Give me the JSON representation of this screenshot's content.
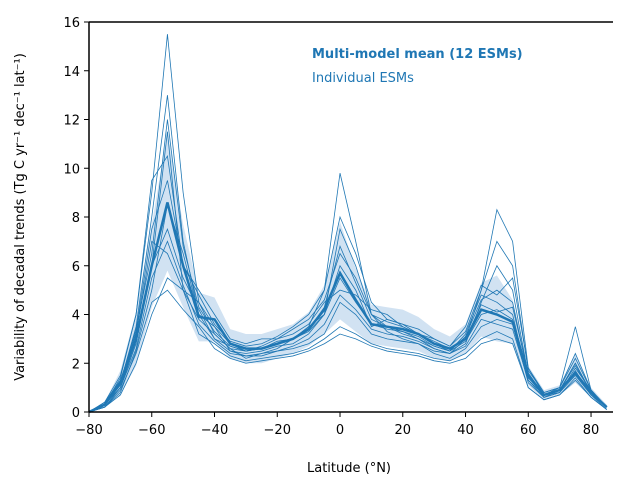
{
  "chart_data": {
    "type": "line",
    "xlabel": "Latitude (°N)",
    "ylabel": "Variability of decadal trends (Tg C yr⁻¹ dec⁻¹ lat⁻¹)",
    "xlim": [
      -80,
      87
    ],
    "ylim": [
      0,
      16
    ],
    "xticks": [
      {
        "value": -80,
        "label": "−80"
      },
      {
        "value": -60,
        "label": "−60"
      },
      {
        "value": -40,
        "label": "−40"
      },
      {
        "value": -20,
        "label": "−20"
      },
      0,
      20,
      40,
      60,
      80
    ],
    "yticks": [
      0,
      2,
      4,
      6,
      8,
      10,
      12,
      14,
      16
    ],
    "x": [
      -80,
      -75,
      -70,
      -65,
      -60,
      -55,
      -50,
      -45,
      -40,
      -35,
      -30,
      -25,
      -20,
      -15,
      -10,
      -5,
      0,
      5,
      10,
      15,
      20,
      25,
      30,
      35,
      40,
      45,
      50,
      55,
      60,
      65,
      70,
      75,
      80,
      85
    ],
    "series": [
      {
        "name": "Multi-model mean (12 ESMs)",
        "color": "#1f77b4",
        "band_color": "#c6dbef",
        "values": [
          0,
          0.3,
          1.2,
          3,
          6,
          8.6,
          6,
          3.9,
          3.8,
          2.8,
          2.6,
          2.6,
          2.8,
          3,
          3.4,
          4.2,
          5.7,
          4.6,
          3.6,
          3.5,
          3.4,
          3.2,
          2.8,
          2.6,
          3,
          4.2,
          4,
          3.7,
          1.5,
          0.7,
          0.9,
          1.6,
          0.8,
          0.2
        ],
        "lower": [
          0,
          0.2,
          0.7,
          1.9,
          4.3,
          5.8,
          4.3,
          2.9,
          2.9,
          2.2,
          2,
          2,
          2.2,
          2.4,
          2.7,
          3.2,
          3.8,
          3.3,
          2.8,
          2.7,
          2.6,
          2.5,
          2.2,
          2.1,
          2.4,
          3.1,
          2.9,
          2.8,
          1.1,
          0.5,
          0.7,
          1.2,
          0.6,
          0.1
        ],
        "upper": [
          0,
          0.4,
          1.7,
          4.1,
          7.7,
          11.5,
          7.7,
          4.9,
          4.7,
          3.4,
          3.2,
          3.2,
          3.4,
          3.6,
          4.1,
          5.2,
          7.8,
          5.9,
          4.4,
          4.3,
          4.2,
          3.9,
          3.4,
          3.1,
          3.6,
          5.3,
          5.6,
          4.6,
          1.9,
          0.9,
          1.1,
          2.4,
          1,
          0.3
        ]
      },
      {
        "name": "Individual ESMs",
        "color": "#1f77b4",
        "members": [
          [
            0,
            0.4,
            1.5,
            4,
            9,
            15.5,
            9,
            4.5,
            3.5,
            2.8,
            2.5,
            2.6,
            2.9,
            3,
            3.5,
            5,
            9.8,
            7,
            4,
            3.5,
            3.2,
            3,
            2.6,
            2.4,
            3,
            5,
            8.3,
            7,
            1.8,
            0.7,
            0.8,
            1.8,
            0.9,
            0.2
          ],
          [
            0,
            0.3,
            1.2,
            3.5,
            8,
            13,
            7,
            4,
            3,
            2.5,
            2.4,
            2.5,
            2.7,
            2.8,
            3.2,
            4,
            7.5,
            6,
            4,
            3.3,
            3,
            2.8,
            2.5,
            2.4,
            2.8,
            4.5,
            6,
            5,
            1.5,
            0.6,
            0.9,
            2,
            0.8,
            0.2
          ],
          [
            0,
            0.2,
            1,
            3,
            6,
            11.5,
            5,
            3.8,
            3.2,
            2.6,
            2.2,
            2.4,
            2.6,
            3,
            3.5,
            4,
            6,
            5,
            3.5,
            3.8,
            3.6,
            3.2,
            2.8,
            2.5,
            3.2,
            4.8,
            4.5,
            4,
            1.3,
            0.7,
            1,
            3.5,
            0.9,
            0.2
          ],
          [
            0,
            0.3,
            1.4,
            4,
            9.5,
            10.5,
            6,
            5,
            4,
            3,
            2.8,
            3,
            3,
            3.2,
            3.6,
            4.5,
            5,
            4.8,
            4.2,
            4,
            3.5,
            3.2,
            3,
            2.7,
            3.5,
            5.2,
            4.8,
            5.5,
            1.8,
            0.8,
            1,
            2.2,
            0.9,
            0.2
          ],
          [
            0,
            0.2,
            0.8,
            2.5,
            5,
            8.5,
            6.5,
            4,
            3.5,
            2.5,
            2.3,
            2.4,
            2.5,
            2.6,
            2.8,
            3.2,
            4.5,
            4,
            3.2,
            3,
            2.9,
            2.8,
            2.4,
            2.2,
            2.6,
            3.5,
            3.8,
            3.6,
            1.2,
            0.6,
            0.8,
            1.5,
            0.7,
            0.1
          ],
          [
            0,
            0.3,
            1,
            2.8,
            6,
            7.5,
            5.5,
            4.2,
            3,
            2.7,
            2.5,
            2.6,
            2.8,
            3,
            3.3,
            4,
            5.5,
            4.5,
            3.6,
            3.4,
            3.3,
            3,
            2.7,
            2.5,
            2.9,
            4,
            4.2,
            3.8,
            1.4,
            0.7,
            0.9,
            1.6,
            0.8,
            0.2
          ],
          [
            0,
            0.2,
            0.7,
            2,
            4,
            5.5,
            5,
            3.2,
            2.8,
            2.3,
            2.1,
            2.2,
            2.3,
            2.4,
            2.6,
            3,
            3.5,
            3.2,
            2.8,
            2.6,
            2.5,
            2.4,
            2.2,
            2.1,
            2.4,
            3,
            3.3,
            3,
            1,
            0.5,
            0.7,
            1.3,
            0.6,
            0.1
          ],
          [
            0,
            0.4,
            1.3,
            3.2,
            7,
            6.5,
            5,
            4.5,
            3.2,
            2.6,
            2.5,
            2.7,
            3,
            3.4,
            3.8,
            4.6,
            6.5,
            5.5,
            4,
            3.7,
            3.5,
            3.2,
            2.9,
            2.6,
            3,
            4.4,
            4.1,
            4.3,
            1.6,
            0.7,
            0.9,
            1.9,
            0.8,
            0.2
          ],
          [
            0,
            0.2,
            0.9,
            2.4,
            4.5,
            5,
            4.2,
            3.5,
            2.6,
            2.2,
            2,
            2.1,
            2.2,
            2.3,
            2.5,
            2.8,
            3.2,
            3,
            2.7,
            2.5,
            2.4,
            2.3,
            2.1,
            2,
            2.2,
            2.8,
            3,
            2.8,
            1,
            0.5,
            0.7,
            1.4,
            0.6,
            0.1
          ],
          [
            0,
            0.3,
            1.1,
            3.3,
            7.5,
            9.5,
            6,
            4.8,
            3.6,
            2.9,
            2.7,
            2.8,
            3.1,
            3.5,
            4,
            5,
            8,
            6.5,
            4.5,
            3.8,
            3.6,
            3.4,
            3,
            2.7,
            3.3,
            5,
            7,
            6,
            1.7,
            0.8,
            1,
            2.4,
            0.9,
            0.2
          ],
          [
            0,
            0.3,
            1,
            2.6,
            5.5,
            7,
            5.2,
            3.6,
            2.9,
            2.4,
            2.3,
            2.3,
            2.5,
            2.7,
            3,
            3.6,
            4.8,
            4.2,
            3.4,
            3.2,
            3.1,
            2.9,
            2.6,
            2.4,
            2.7,
            3.8,
            3.6,
            3.4,
            1.3,
            0.6,
            0.8,
            1.7,
            0.7,
            0.2
          ],
          [
            0,
            0.3,
            1.2,
            3.4,
            6.5,
            12,
            6.8,
            4.3,
            3.3,
            2.7,
            2.5,
            2.6,
            2.8,
            3,
            3.4,
            4.3,
            6.8,
            5.3,
            3.8,
            3.5,
            3.3,
            3.1,
            2.7,
            2.5,
            3.1,
            4.6,
            5,
            4.5,
            1.5,
            0.7,
            0.9,
            2,
            0.8,
            0.2
          ]
        ]
      }
    ]
  }
}
